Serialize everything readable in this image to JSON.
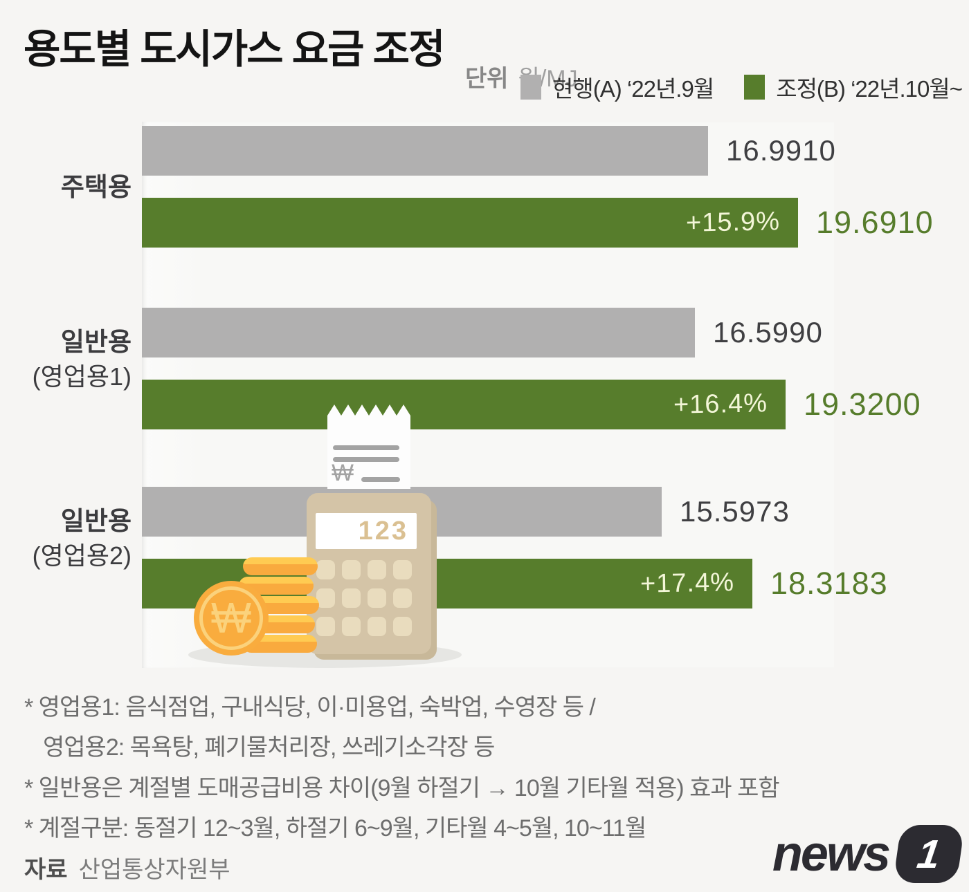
{
  "title": "용도별 도시가스 요금 조정",
  "unit": {
    "label": "단위",
    "value": "원/MJ"
  },
  "legend": {
    "current_label": "현행(A) ‘22년.9월",
    "adjusted_label": "조정(B) ‘22년.10월~",
    "current_color": "#b1b0b0",
    "adjusted_color": "#577d2c"
  },
  "chart_data": {
    "type": "bar",
    "orientation": "horizontal",
    "unit": "원/MJ",
    "categories": [
      "주택용",
      "일반용(영업용1)",
      "일반용(영업용2)"
    ],
    "series": [
      {
        "name": "현행(A) ‘22년.9월",
        "color": "#b1b0b0",
        "values": [
          16.991,
          16.599,
          15.5973
        ]
      },
      {
        "name": "조정(B) ‘22년.10월~",
        "color": "#577d2c",
        "values": [
          19.691,
          19.32,
          18.3183
        ]
      }
    ],
    "change_labels": [
      "+15.9%",
      "+16.4%",
      "+17.4%"
    ],
    "value_axis_range": [
      0,
      20.5
    ],
    "grid": false,
    "legend_position": "top-right"
  },
  "groups": [
    {
      "label1": "주택용",
      "label2": "",
      "current": "16.9910",
      "adjusted": "19.6910",
      "change": "+15.9%"
    },
    {
      "label1": "일반용",
      "label2": "(영업용1)",
      "current": "16.5990",
      "adjusted": "19.3200",
      "change": "+16.4%"
    },
    {
      "label1": "일반용",
      "label2": "(영업용2)",
      "current": "15.5973",
      "adjusted": "18.3183",
      "change": "+17.4%"
    }
  ],
  "illustration": {
    "display": "123",
    "coin_symbol": "₩",
    "receipt_symbol": "₩"
  },
  "footnotes": [
    "* 영업용1: 음식점업, 구내식당, 이·미용업, 숙박업, 수영장 등 /",
    "영업용2: 목욕탕, 폐기물처리장, 쓰레기소각장 등",
    "* 일반용은 계절별 도매공급비용 차이(9월 하절기 → 10월 기타월 적용) 효과 포함",
    "* 계절구분: 동절기 12~3월, 하절기 6~9월, 기타월 4~5월, 10~11월"
  ],
  "source": {
    "label": "자료",
    "value": "산업통상자원부"
  },
  "logo": {
    "text": "news",
    "badge": "1"
  }
}
